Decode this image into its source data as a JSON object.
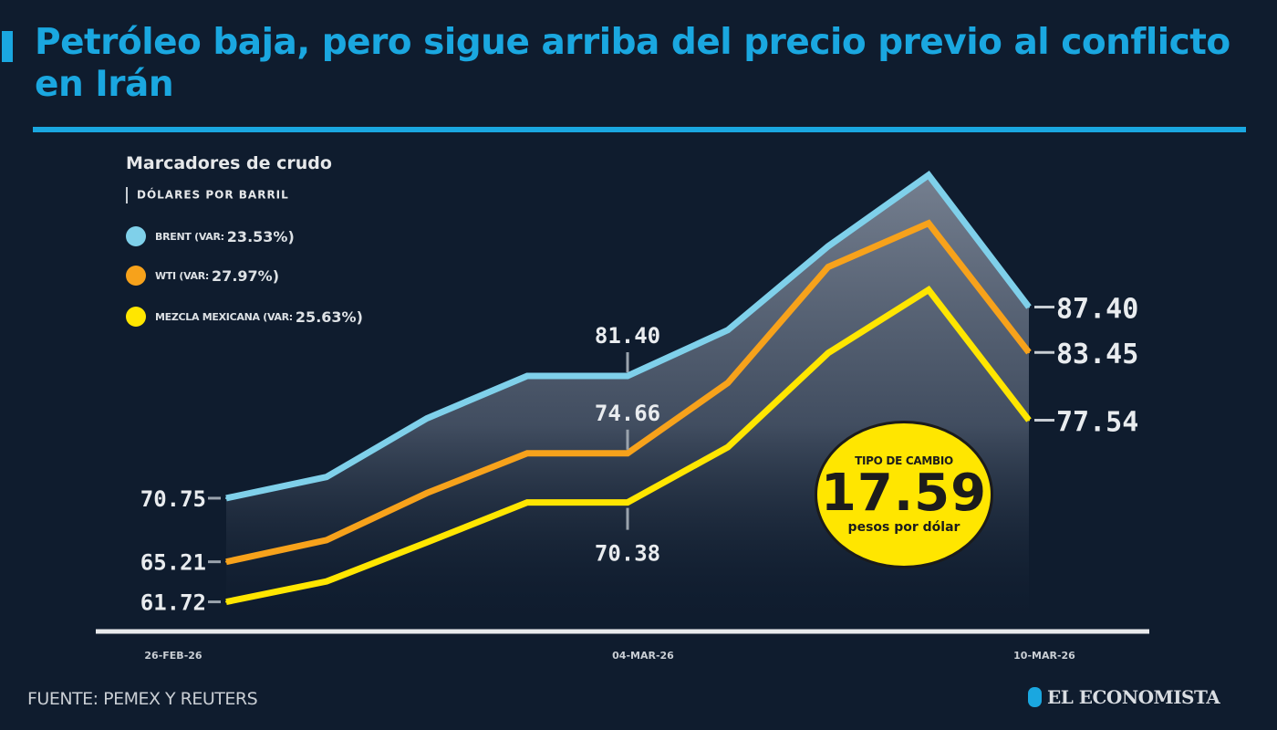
{
  "header": {
    "title": "Petróleo baja, pero sigue arriba del precio previo al conflicto en Irán"
  },
  "legend": {
    "title": "Marcadores de crudo",
    "subtitle": "DÓLARES POR BARRIL",
    "items": [
      {
        "name": "BRENT (VAR: ",
        "var": "23.53%)",
        "color": "#7fd0ea"
      },
      {
        "name": "WTI (VAR: ",
        "var": "27.97%)",
        "color": "#f7a21b"
      },
      {
        "name": "MEZCLA MEXICANA (VAR: ",
        "var": "25.63%)",
        "color": "#ffe600"
      }
    ]
  },
  "badge": {
    "top": "TIPO DE CAMBIO",
    "value": "17.59",
    "bottom": "pesos por dólar"
  },
  "footer": {
    "source": "FUENTE: PEMEX Y REUTERS",
    "logo": "EL ECONOMISTA"
  },
  "colors": {
    "background": "#0f1c2e",
    "accent": "#1aa7e0",
    "brent": "#7fd0ea",
    "wti": "#f7a21b",
    "mezcla": "#ffe600"
  },
  "chart_data": {
    "type": "line",
    "title": "Petróleo baja, pero sigue arriba del precio previo al conflicto en Irán",
    "subtitle": "Marcadores de crudo | DÓLARES POR BARRIL",
    "xlabel": "",
    "ylabel": "Dólares por barril",
    "ylim": [
      55,
      102
    ],
    "grid": false,
    "legend_position": "top-left",
    "x_tick_labels": [
      "26-FEB-26",
      "04-MAR-26",
      "10-MAR-26"
    ],
    "x_tick_index": [
      0,
      4,
      8
    ],
    "series": [
      {
        "name": "BRENT",
        "color": "#7fd0ea",
        "values": [
          70.75,
          72.6,
          77.7,
          81.4,
          81.4,
          85.4,
          92.7,
          98.9,
          87.4
        ]
      },
      {
        "name": "WTI",
        "color": "#f7a21b",
        "values": [
          65.21,
          67.1,
          71.2,
          74.66,
          74.66,
          80.8,
          90.9,
          94.7,
          83.45
        ]
      },
      {
        "name": "MEZCLA MEXICANA",
        "color": "#ffe600",
        "values": [
          61.72,
          63.5,
          66.9,
          70.38,
          70.38,
          75.2,
          83.4,
          88.9,
          77.54
        ]
      }
    ],
    "annotations": [
      {
        "series": "BRENT",
        "index": 0,
        "text": "70.75"
      },
      {
        "series": "WTI",
        "index": 0,
        "text": "65.21"
      },
      {
        "series": "MEZCLA MEXICANA",
        "index": 0,
        "text": "61.72"
      },
      {
        "series": "BRENT",
        "index": 4,
        "text": "81.40"
      },
      {
        "series": "WTI",
        "index": 4,
        "text": "74.66"
      },
      {
        "series": "MEZCLA MEXICANA",
        "index": 4,
        "text": "70.38"
      },
      {
        "series": "BRENT",
        "index": 8,
        "text": "87.40"
      },
      {
        "series": "WTI",
        "index": 8,
        "text": "83.45"
      },
      {
        "series": "MEZCLA MEXICANA",
        "index": 8,
        "text": "77.54"
      }
    ]
  }
}
